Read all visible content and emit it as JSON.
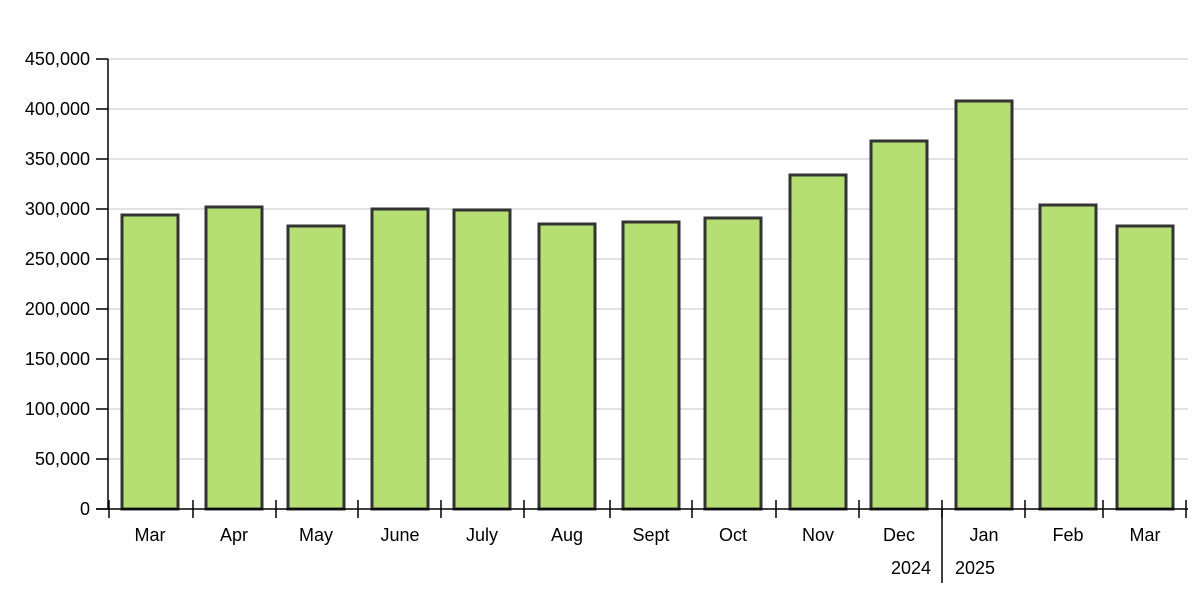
{
  "chart_data": {
    "type": "bar",
    "title": "",
    "xlabel": "",
    "ylabel": "",
    "ylim": [
      0,
      450000
    ],
    "yticks": [
      {
        "value": 0,
        "label": "0"
      },
      {
        "value": 50000,
        "label": "50,000"
      },
      {
        "value": 100000,
        "label": "100,000"
      },
      {
        "value": 150000,
        "label": "150,000"
      },
      {
        "value": 200000,
        "label": "200,000"
      },
      {
        "value": 250000,
        "label": "250,000"
      },
      {
        "value": 300000,
        "label": "300,000"
      },
      {
        "value": 350000,
        "label": "350,000"
      },
      {
        "value": 400000,
        "label": "400,000"
      },
      {
        "value": 450000,
        "label": "450,000"
      }
    ],
    "categories": [
      "Mar",
      "Apr",
      "May",
      "June",
      "July",
      "Aug",
      "Sept",
      "Oct",
      "Nov",
      "Dec",
      "Jan",
      "Feb",
      "Mar"
    ],
    "values": [
      294000,
      302000,
      283000,
      300000,
      299000,
      285000,
      287000,
      291000,
      334000,
      368000,
      408000,
      304000,
      283000
    ],
    "year_labels": [
      "2024",
      "2025"
    ],
    "grid": true,
    "legend": "none",
    "bar_color": "#b5df73",
    "bar_border_color": "#333333"
  }
}
